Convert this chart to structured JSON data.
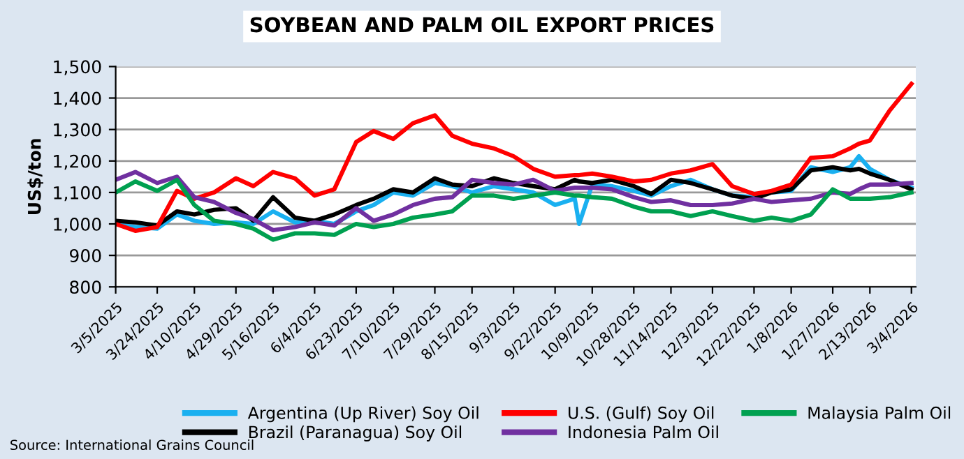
{
  "chart_data": {
    "type": "line",
    "title": "SOYBEAN AND PALM OIL EXPORT PRICES",
    "ylabel": "US$/ton",
    "x": [
      "2025-03-05",
      "2025-03-14",
      "2025-03-24",
      "2025-04-02",
      "2025-04-10",
      "2025-04-19",
      "2025-04-29",
      "2025-05-07",
      "2025-05-16",
      "2025-05-26",
      "2025-06-04",
      "2025-06-13",
      "2025-06-23",
      "2025-07-01",
      "2025-07-10",
      "2025-07-19",
      "2025-07-29",
      "2025-08-06",
      "2025-08-15",
      "2025-08-25",
      "2025-09-03",
      "2025-09-12",
      "2025-09-22",
      "2025-10-01",
      "2025-10-03",
      "2025-10-09",
      "2025-10-18",
      "2025-10-28",
      "2025-11-05",
      "2025-11-14",
      "2025-11-23",
      "2025-12-03",
      "2025-12-12",
      "2025-12-22",
      "2025-12-30",
      "2026-01-08",
      "2026-01-17",
      "2026-01-27",
      "2026-02-04",
      "2026-02-08",
      "2026-02-13",
      "2026-02-22",
      "2026-03-04"
    ],
    "series": [
      {
        "name": "Argentina (Up River) Soy Oil",
        "color": "#1ab0f0",
        "values": [
          1000,
          990,
          985,
          1030,
          1010,
          1000,
          1005,
          1000,
          1040,
          1005,
          1010,
          1000,
          1040,
          1060,
          1100,
          1090,
          1130,
          1120,
          1100,
          1120,
          1110,
          1100,
          1060,
          1080,
          1000,
          1125,
          1120,
          1105,
          1090,
          1120,
          1140,
          1110,
          1090,
          1085,
          1100,
          1105,
          1180,
          1165,
          1180,
          1215,
          1175,
          1140,
          1115
        ]
      },
      {
        "name": "Brazil (Paranagua) Soy Oil",
        "color": "#000000",
        "values": [
          1010,
          1005,
          995,
          1040,
          1030,
          1045,
          1050,
          1010,
          1085,
          1020,
          1010,
          1030,
          1060,
          1080,
          1110,
          1100,
          1145,
          1125,
          1120,
          1145,
          1130,
          1120,
          1110,
          1140,
          1135,
          1130,
          1140,
          1120,
          1095,
          1140,
          1130,
          1110,
          1090,
          1080,
          1100,
          1110,
          1170,
          1180,
          1170,
          1175,
          1160,
          1140,
          1110
        ]
      },
      {
        "name": "U.S. (Gulf) Soy Oil",
        "color": "#ff0000",
        "values": [
          1000,
          978,
          990,
          1105,
          1080,
          1100,
          1145,
          1120,
          1165,
          1145,
          1090,
          1110,
          1260,
          1295,
          1270,
          1320,
          1345,
          1280,
          1255,
          1240,
          1215,
          1175,
          1150,
          1155,
          1155,
          1160,
          1150,
          1135,
          1140,
          1160,
          1170,
          1190,
          1120,
          1095,
          1105,
          1125,
          1210,
          1215,
          1240,
          1255,
          1265,
          1360,
          1445
        ]
      },
      {
        "name": "Indonesia Palm Oil",
        "color": "#7030a0",
        "values": [
          1140,
          1165,
          1130,
          1150,
          1085,
          1070,
          1035,
          1015,
          980,
          990,
          1005,
          995,
          1050,
          1010,
          1030,
          1060,
          1080,
          1085,
          1140,
          1130,
          1125,
          1140,
          1105,
          1115,
          1115,
          1115,
          1110,
          1085,
          1070,
          1075,
          1060,
          1060,
          1065,
          1080,
          1070,
          1075,
          1080,
          1100,
          1095,
          1110,
          1125,
          1125,
          1130
        ]
      },
      {
        "name": "Malaysia Palm Oil",
        "color": "#00a050",
        "values": [
          1100,
          1135,
          1105,
          1140,
          1060,
          1010,
          1000,
          985,
          950,
          970,
          970,
          965,
          1000,
          990,
          1000,
          1020,
          1030,
          1040,
          1090,
          1090,
          1080,
          1090,
          1100,
          1090,
          1090,
          1085,
          1080,
          1055,
          1040,
          1040,
          1025,
          1040,
          1025,
          1010,
          1020,
          1010,
          1030,
          1110,
          1080,
          1080,
          1080,
          1085,
          1100
        ]
      }
    ],
    "xlim": [
      "2025-03-05",
      "2026-03-06"
    ],
    "xticks": [
      {
        "value": "2025-03-05",
        "label": "3/5/2025"
      },
      {
        "value": "2025-03-24",
        "label": "3/24/2025"
      },
      {
        "value": "2025-04-10",
        "label": "4/10/2025"
      },
      {
        "value": "2025-04-29",
        "label": "4/29/2025"
      },
      {
        "value": "2025-05-16",
        "label": "5/16/2025"
      },
      {
        "value": "2025-06-04",
        "label": "6/4/2025"
      },
      {
        "value": "2025-06-23",
        "label": "6/23/2025"
      },
      {
        "value": "2025-07-10",
        "label": "7/10/2025"
      },
      {
        "value": "2025-07-29",
        "label": "7/29/2025"
      },
      {
        "value": "2025-08-15",
        "label": "8/15/2025"
      },
      {
        "value": "2025-09-03",
        "label": "9/3/2025"
      },
      {
        "value": "2025-09-22",
        "label": "9/22/2025"
      },
      {
        "value": "2025-10-09",
        "label": "10/9/2025"
      },
      {
        "value": "2025-10-28",
        "label": "10/28/2025"
      },
      {
        "value": "2025-11-14",
        "label": "11/14/2025"
      },
      {
        "value": "2025-12-03",
        "label": "12/3/2025"
      },
      {
        "value": "2025-12-22",
        "label": "12/22/2025"
      },
      {
        "value": "2026-01-08",
        "label": "1/8/2026"
      },
      {
        "value": "2026-01-27",
        "label": "1/27/2026"
      },
      {
        "value": "2026-02-13",
        "label": "2/13/2026"
      },
      {
        "value": "2026-03-04",
        "label": "3/4/2026"
      }
    ],
    "ylim": [
      800,
      1500
    ],
    "yticks": [
      {
        "value": 800,
        "label": "800"
      },
      {
        "value": 900,
        "label": "900"
      },
      {
        "value": 1000,
        "label": "1,000"
      },
      {
        "value": 1100,
        "label": "1,100"
      },
      {
        "value": 1200,
        "label": "1,200"
      },
      {
        "value": 1300,
        "label": "1,300"
      },
      {
        "value": 1400,
        "label": "1,400"
      },
      {
        "value": 1500,
        "label": "1,500"
      }
    ],
    "grid": "y",
    "legend": "bottom",
    "marker": "none",
    "line_style": "solid",
    "annotations": [
      "Source: International Grains Council"
    ]
  }
}
